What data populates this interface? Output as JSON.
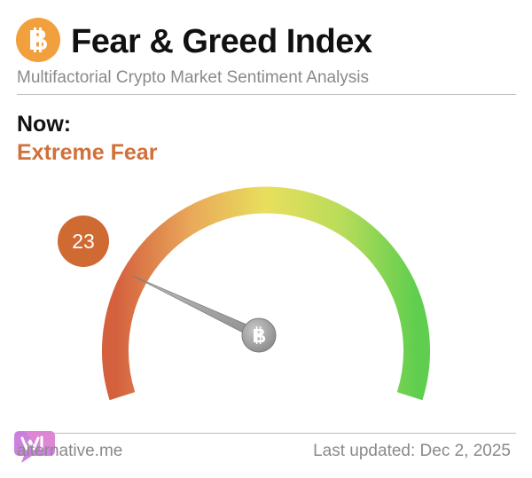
{
  "header": {
    "logo_icon": "bitcoin-icon",
    "logo_color": "#f2a03d",
    "title": "Fear & Greed Index",
    "subtitle": "Multifactorial Crypto Market Sentiment Analysis"
  },
  "now": {
    "label": "Now:",
    "classification": "Extreme Fear",
    "classification_color": "#d0703a",
    "value": "23"
  },
  "gauge": {
    "min": 0,
    "max": 100,
    "value": 23,
    "hub_icon": "bitcoin-icon",
    "colors": [
      "#d4603e",
      "#e9a85a",
      "#e8df5c",
      "#b9dc5a",
      "#5fce4e"
    ]
  },
  "footer": {
    "site": "alternative.me",
    "updated": "Last updated: Dec 2, 2025"
  }
}
